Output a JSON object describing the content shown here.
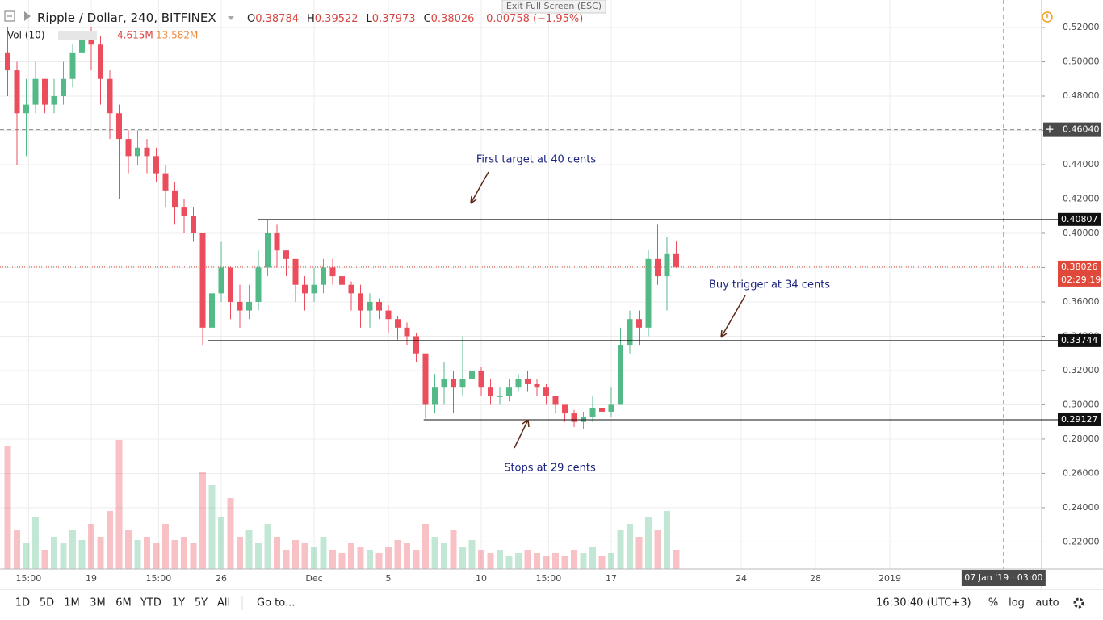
{
  "chart_data": {
    "type": "candlestick",
    "title": "Ripple / Dollar, 240, BITFINEX",
    "ohlc": [
      {
        "key": "O",
        "value": "0.38784"
      },
      {
        "key": "H",
        "value": "0.39522"
      },
      {
        "key": "L",
        "value": "0.37973"
      },
      {
        "key": "C",
        "value": "0.38026"
      }
    ],
    "change": "-0.00758 (−1.95%)",
    "volume_legend": {
      "name": "Vol (10)",
      "value": "4.615M",
      "ma": "13.582M"
    },
    "x": [
      -4.5,
      -4,
      -3.5,
      -3,
      -2.5,
      -2,
      -1.5,
      -1,
      -0.5,
      0,
      0.5,
      1,
      1.5,
      2,
      2.5,
      3,
      3.5,
      4,
      4.5,
      5,
      5.5,
      6,
      6.5,
      7,
      7.5,
      8,
      8.5,
      9,
      9.5,
      10,
      10.5,
      11,
      11.5,
      12,
      12.5,
      13,
      13.5,
      14,
      14.5,
      15,
      15.5,
      16,
      16.5,
      17,
      17.5,
      18,
      18.5,
      19,
      19.5,
      20,
      20.5,
      21,
      21.5,
      22,
      22.5,
      23,
      23.5,
      24,
      24.5,
      25,
      25.5,
      26,
      26.5,
      27,
      27.5,
      28,
      28.5,
      29,
      29.5,
      30,
      30.5,
      31,
      31.5
    ],
    "open": [
      0.505,
      0.495,
      0.47,
      0.475,
      0.49,
      0.475,
      0.48,
      0.49,
      0.505,
      0.515,
      0.51,
      0.49,
      0.47,
      0.455,
      0.445,
      0.45,
      0.445,
      0.435,
      0.425,
      0.415,
      0.41,
      0.4,
      0.345,
      0.365,
      0.38,
      0.36,
      0.355,
      0.36,
      0.38,
      0.4,
      0.39,
      0.385,
      0.37,
      0.365,
      0.37,
      0.38,
      0.375,
      0.37,
      0.365,
      0.355,
      0.36,
      0.355,
      0.35,
      0.345,
      0.34,
      0.33,
      0.3,
      0.31,
      0.315,
      0.31,
      0.315,
      0.32,
      0.31,
      0.305,
      0.305,
      0.31,
      0.315,
      0.312,
      0.31,
      0.305,
      0.3,
      0.295,
      0.29,
      0.293,
      0.298,
      0.296,
      0.3,
      0.335,
      0.35,
      0.345,
      0.385,
      0.375,
      0.38784
    ],
    "high": [
      0.52,
      0.5,
      0.49,
      0.5,
      0.49,
      0.49,
      0.5,
      0.51,
      0.53,
      0.52,
      0.515,
      0.495,
      0.475,
      0.46,
      0.46,
      0.455,
      0.45,
      0.44,
      0.43,
      0.42,
      0.415,
      0.4,
      0.375,
      0.395,
      0.38,
      0.37,
      0.37,
      0.39,
      0.408,
      0.405,
      0.39,
      0.385,
      0.375,
      0.38,
      0.385,
      0.385,
      0.378,
      0.372,
      0.37,
      0.365,
      0.362,
      0.358,
      0.352,
      0.348,
      0.342,
      0.33,
      0.318,
      0.325,
      0.32,
      0.34,
      0.328,
      0.322,
      0.315,
      0.31,
      0.315,
      0.318,
      0.32,
      0.315,
      0.312,
      0.305,
      0.3,
      0.297,
      0.296,
      0.305,
      0.302,
      0.31,
      0.345,
      0.355,
      0.355,
      0.39,
      0.405,
      0.398,
      0.39522
    ],
    "low": [
      0.48,
      0.44,
      0.445,
      0.47,
      0.47,
      0.47,
      0.475,
      0.485,
      0.5,
      0.495,
      0.475,
      0.455,
      0.42,
      0.435,
      0.44,
      0.435,
      0.43,
      0.415,
      0.405,
      0.4,
      0.395,
      0.335,
      0.33,
      0.36,
      0.35,
      0.345,
      0.35,
      0.355,
      0.375,
      0.38,
      0.375,
      0.36,
      0.355,
      0.36,
      0.365,
      0.37,
      0.365,
      0.355,
      0.345,
      0.345,
      0.35,
      0.342,
      0.338,
      0.335,
      0.325,
      0.292,
      0.295,
      0.3,
      0.295,
      0.305,
      0.31,
      0.305,
      0.3,
      0.3,
      0.302,
      0.308,
      0.308,
      0.305,
      0.3,
      0.295,
      0.29,
      0.287,
      0.286,
      0.29,
      0.292,
      0.293,
      0.3,
      0.33,
      0.335,
      0.34,
      0.37,
      0.355,
      0.37973
    ],
    "close": [
      0.495,
      0.47,
      0.475,
      0.49,
      0.475,
      0.48,
      0.49,
      0.505,
      0.515,
      0.51,
      0.49,
      0.47,
      0.455,
      0.445,
      0.45,
      0.445,
      0.435,
      0.425,
      0.415,
      0.41,
      0.4,
      0.345,
      0.365,
      0.38,
      0.36,
      0.355,
      0.36,
      0.38,
      0.4,
      0.39,
      0.385,
      0.37,
      0.365,
      0.37,
      0.38,
      0.375,
      0.37,
      0.365,
      0.355,
      0.36,
      0.355,
      0.35,
      0.345,
      0.34,
      0.33,
      0.3,
      0.31,
      0.315,
      0.31,
      0.315,
      0.32,
      0.31,
      0.305,
      0.305,
      0.31,
      0.315,
      0.312,
      0.31,
      0.305,
      0.3,
      0.295,
      0.29,
      0.293,
      0.298,
      0.296,
      0.3,
      0.335,
      0.35,
      0.345,
      0.385,
      0.375,
      0.38784,
      0.38026
    ],
    "volume": [
      38,
      12,
      8,
      16,
      6,
      10,
      8,
      12,
      9,
      14,
      10,
      18,
      40,
      12,
      9,
      10,
      8,
      14,
      9,
      10,
      8,
      30,
      26,
      16,
      22,
      10,
      12,
      8,
      14,
      10,
      6,
      9,
      8,
      7,
      10,
      6,
      5,
      8,
      7,
      6,
      5,
      7,
      9,
      8,
      6,
      14,
      10,
      8,
      12,
      7,
      9,
      6,
      5,
      6,
      4,
      5,
      6,
      5,
      4,
      5,
      4,
      6,
      5,
      7,
      4,
      5,
      12,
      14,
      10,
      16,
      12,
      18,
      6
    ],
    "up_color": "#53b987",
    "down_color": "#eb4d5c",
    "xlim": [
      -4.913,
      51.174
    ],
    "ylim": [
      0.2042,
      0.536
    ],
    "volume_ylim": [
      0,
      45
    ],
    "xticks": [
      {
        "value": -3.375,
        "label": "15:00"
      },
      {
        "value": 0,
        "label": "19"
      },
      {
        "value": 3.625,
        "label": "15:00"
      },
      {
        "value": 7,
        "label": "26"
      },
      {
        "value": 12,
        "label": "Dec"
      },
      {
        "value": 16,
        "label": "5"
      },
      {
        "value": 21,
        "label": "10"
      },
      {
        "value": 24.625,
        "label": "15:00"
      },
      {
        "value": 28,
        "label": "17"
      },
      {
        "value": 35,
        "label": "24"
      },
      {
        "value": 39,
        "label": "28"
      },
      {
        "value": 43,
        "label": "2019"
      }
    ],
    "yticks": [
      {
        "value": 0.52,
        "label": "0.52000"
      },
      {
        "value": 0.5,
        "label": "0.50000"
      },
      {
        "value": 0.48,
        "label": "0.48000"
      },
      {
        "value": 0.46,
        "label": "0.46000"
      },
      {
        "value": 0.44,
        "label": "0.44000"
      },
      {
        "value": 0.42,
        "label": "0.42000"
      },
      {
        "value": 0.4,
        "label": "0.40000"
      },
      {
        "value": 0.38,
        "label": "0.38000"
      },
      {
        "value": 0.36,
        "label": "0.36000"
      },
      {
        "value": 0.34,
        "label": "0.34000"
      },
      {
        "value": 0.32,
        "label": "0.32000"
      },
      {
        "value": 0.3,
        "label": "0.30000"
      },
      {
        "value": 0.28,
        "label": "0.28000"
      },
      {
        "value": 0.26,
        "label": "0.26000"
      },
      {
        "value": 0.24,
        "label": "0.24000"
      },
      {
        "value": 0.22,
        "label": "0.22000"
      }
    ],
    "grid": true,
    "levels": [
      {
        "value": 0.40807,
        "label": "0.40807",
        "from": 9.0
      },
      {
        "value": 0.33744,
        "label": "0.33744",
        "from": 6.3
      },
      {
        "value": 0.29127,
        "label": "0.29127",
        "from": 17.9
      }
    ],
    "current": {
      "value": 0.38026,
      "label": "0.38026",
      "countdown": "02:29:19",
      "color": "#e0493a"
    },
    "crosshair": {
      "x": 49.125,
      "x_label": "07 Jan '19 · 03:00",
      "y": {
        "value": 0.4604,
        "label": "0.46040"
      }
    },
    "annotations": [
      "First target at 40 cents",
      "Buy trigger at 34 cents",
      "Stops at 29 cents"
    ]
  },
  "toolbar": {
    "exit": "Exit Full Screen (ESC)",
    "ranges": [
      "1D",
      "5D",
      "1M",
      "3M",
      "6M",
      "YTD",
      "1Y",
      "5Y",
      "All"
    ],
    "goto": "Go to...",
    "clock": "16:30:40 (UTC+3)",
    "percent": "%",
    "log": "log",
    "auto": "auto"
  }
}
